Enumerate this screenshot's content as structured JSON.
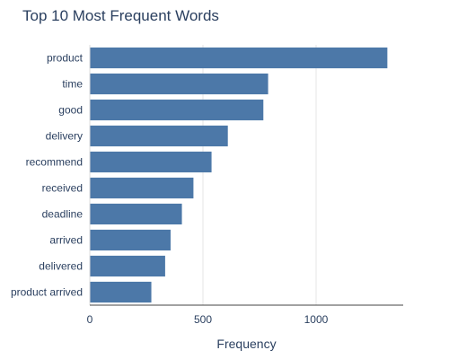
{
  "chart_data": {
    "type": "bar",
    "orientation": "horizontal",
    "title": "Top 10 Most Frequent Words",
    "xlabel": "Frequency",
    "ylabel": "",
    "categories": [
      "product",
      "time",
      "good",
      "delivery",
      "recommend",
      "received",
      "deadline",
      "arrived",
      "delivered",
      "product arrived"
    ],
    "values": [
      1315,
      788,
      767,
      610,
      538,
      458,
      407,
      357,
      333,
      272
    ],
    "xlim": [
      0,
      1385
    ],
    "xticks": [
      0,
      500,
      1000
    ],
    "grid": true,
    "legend": "none",
    "bar_color": "#4c78a8"
  }
}
